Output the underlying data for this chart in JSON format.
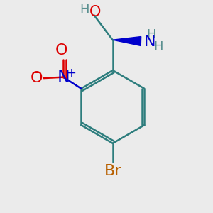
{
  "bg_color": "#ebebeb",
  "ring_color": "#2d7d7d",
  "bond_color": "#2d7d7d",
  "bond_width": 1.8,
  "atom_colors": {
    "C": "#2d7d7d",
    "H": "#5a9090",
    "O": "#dd0000",
    "N": "#0000cc",
    "Br": "#b86000",
    "minus": "#dd0000"
  },
  "font_size_large": 15,
  "font_size_medium": 13,
  "font_size_small": 11
}
